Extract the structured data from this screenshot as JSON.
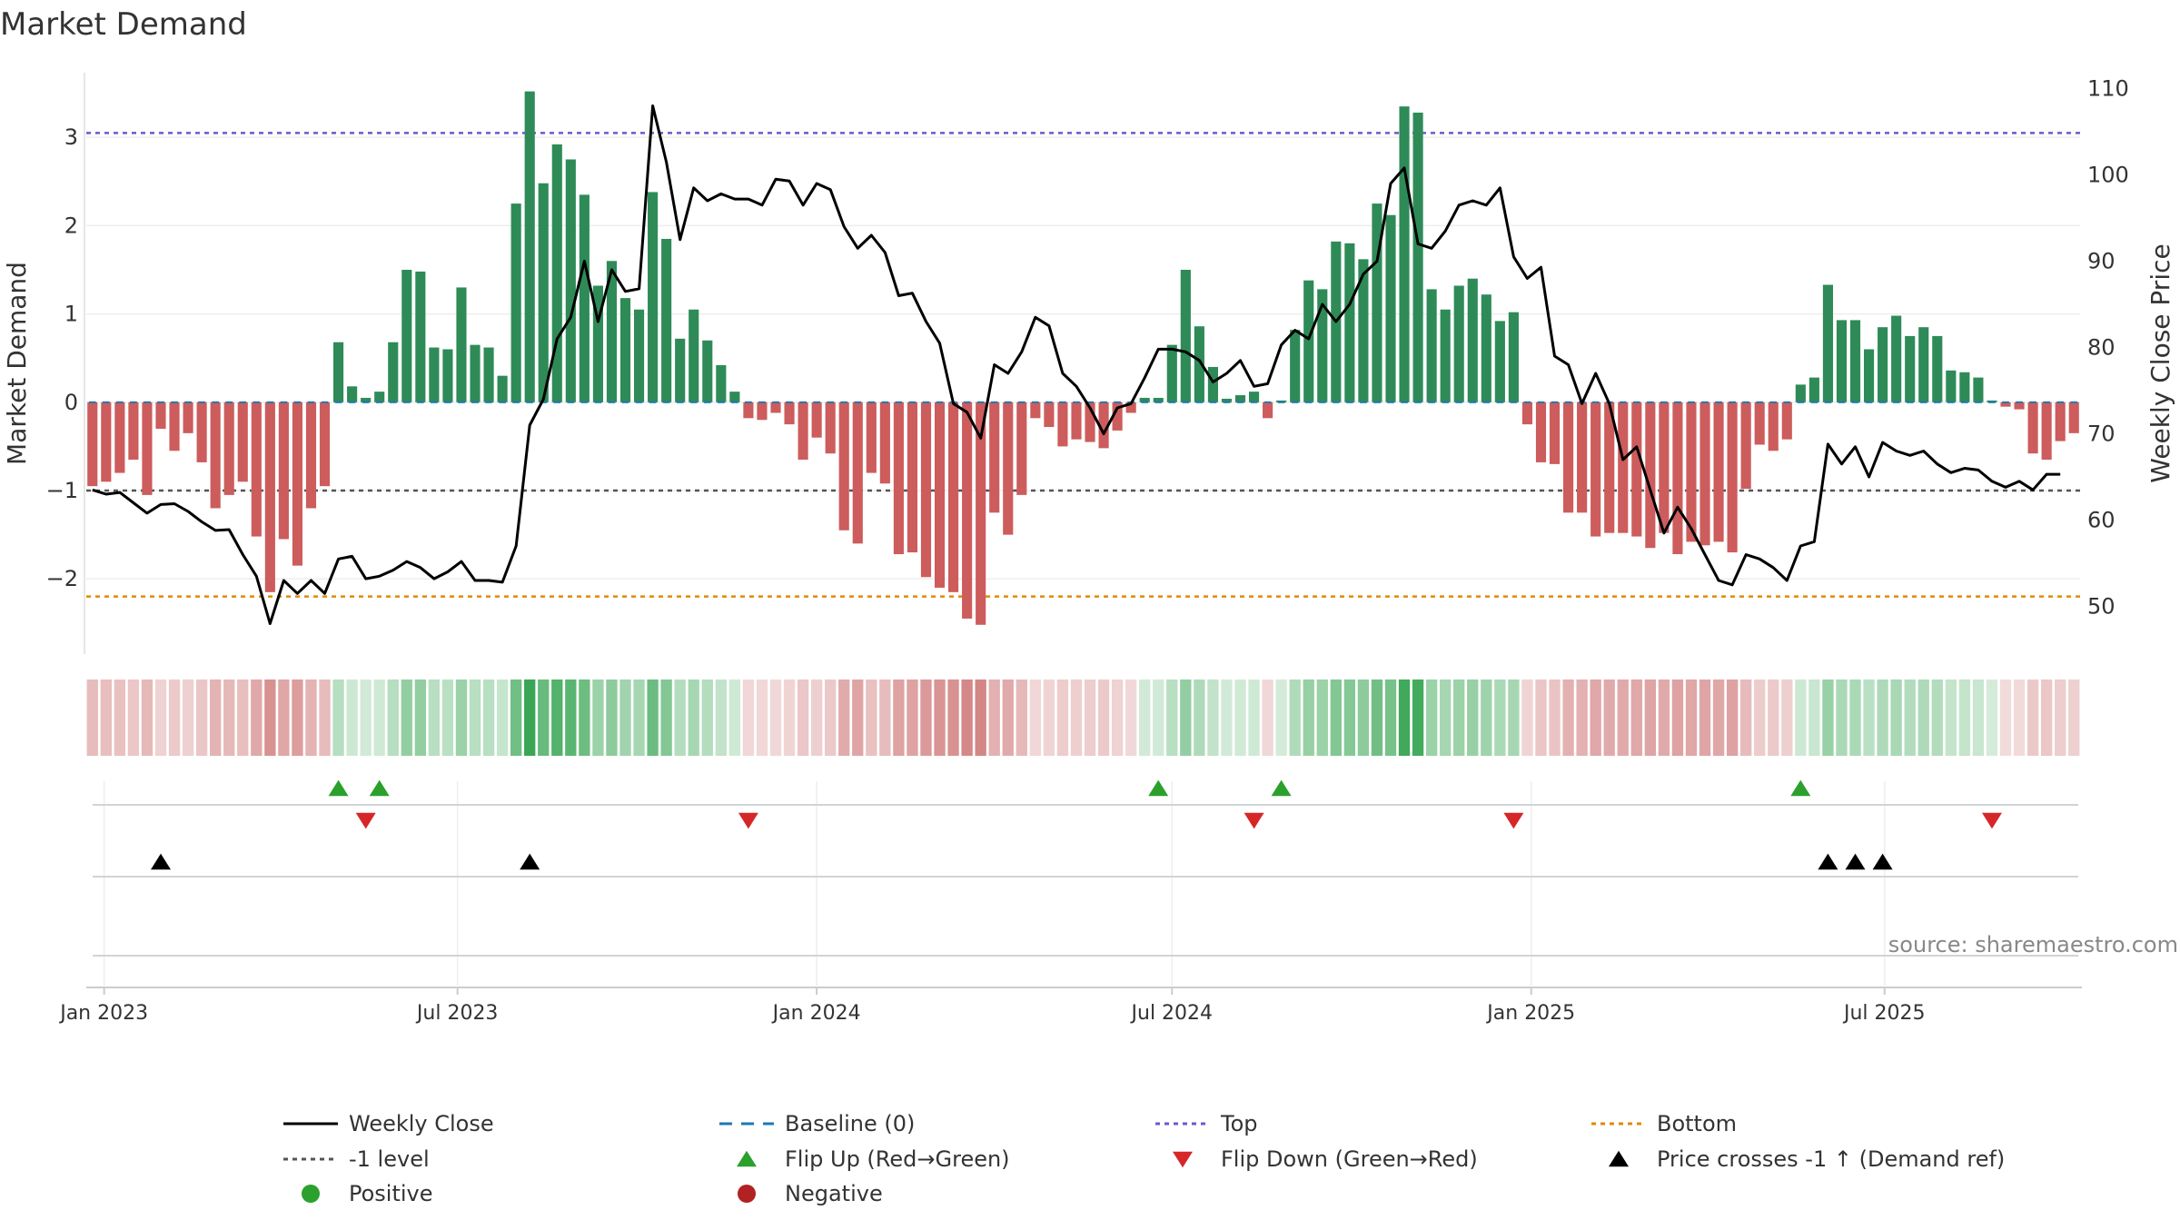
{
  "chart_data": {
    "type": "bar",
    "title": "Market Demand",
    "ylabel": "Market Demand",
    "y2label": "Weekly Close Price",
    "source": "source: sharemaestro.com",
    "ylim": [
      -2.8,
      3.65
    ],
    "y2lim": [
      45,
      111
    ],
    "yticks": [
      3,
      2,
      1,
      0,
      -1,
      -2
    ],
    "ytick_labels": [
      "3",
      "2",
      "1",
      "0",
      "−1",
      "−2"
    ],
    "y2ticks": [
      110,
      100,
      90,
      80,
      70,
      60,
      50
    ],
    "y2tick_labels": [
      "110",
      "100",
      "90",
      "80",
      "70",
      "60",
      "50"
    ],
    "x_start": "2022-12-26",
    "x_interval": "weekly",
    "xticks": [
      {
        "date": "2023-01-01",
        "label": "Jan 2023"
      },
      {
        "date": "2023-07-01",
        "label": "Jul 2023"
      },
      {
        "date": "2024-01-01",
        "label": "Jan 2024"
      },
      {
        "date": "2024-07-01",
        "label": "Jul 2024"
      },
      {
        "date": "2025-01-01",
        "label": "Jan 2025"
      },
      {
        "date": "2025-07-01",
        "label": "Jul 2025"
      }
    ],
    "reference_lines": {
      "top": 3.05,
      "bottom": -2.2,
      "minus_one": -1,
      "baseline": 0
    },
    "demand": [
      -0.95,
      -0.9,
      -0.8,
      -0.65,
      -1.05,
      -0.3,
      -0.55,
      -0.35,
      -0.68,
      -1.2,
      -1.05,
      -0.9,
      -1.52,
      -2.15,
      -1.55,
      -1.85,
      -1.2,
      -0.95,
      0.68,
      0.18,
      0.05,
      0.12,
      0.68,
      1.5,
      1.48,
      0.62,
      0.6,
      1.3,
      0.65,
      0.62,
      0.3,
      2.25,
      3.52,
      2.48,
      2.92,
      2.75,
      2.35,
      1.32,
      1.6,
      1.18,
      1.05,
      2.38,
      1.85,
      0.72,
      1.05,
      0.7,
      0.42,
      0.12,
      -0.18,
      -0.2,
      -0.12,
      -0.25,
      -0.65,
      -0.4,
      -0.58,
      -1.45,
      -1.6,
      -0.8,
      -0.92,
      -1.72,
      -1.7,
      -1.98,
      -2.1,
      -2.15,
      -2.45,
      -2.52,
      -1.25,
      -1.5,
      -1.05,
      -0.18,
      -0.28,
      -0.5,
      -0.42,
      -0.45,
      -0.52,
      -0.32,
      -0.12,
      0.05,
      0.05,
      0.65,
      1.5,
      0.86,
      0.4,
      0.04,
      0.08,
      0.12,
      -0.18,
      0.02,
      0.82,
      1.38,
      1.28,
      1.82,
      1.8,
      1.62,
      2.25,
      2.12,
      3.35,
      3.28,
      1.28,
      1.05,
      1.32,
      1.4,
      1.22,
      0.92,
      1.02,
      -0.25,
      -0.68,
      -0.7,
      -1.25,
      -1.25,
      -1.52,
      -1.48,
      -1.48,
      -1.52,
      -1.65,
      -1.48,
      -1.72,
      -1.58,
      -1.62,
      -1.58,
      -1.7,
      -0.98,
      -0.48,
      -0.55,
      -0.42,
      0.2,
      0.28,
      1.33,
      0.93,
      0.93,
      0.6,
      0.85,
      0.98,
      0.75,
      0.85,
      0.75,
      0.36,
      0.34,
      0.28,
      0.02,
      -0.05,
      -0.08,
      -0.58,
      -0.65,
      -0.44,
      -0.35
    ],
    "close": [
      63.5,
      63.0,
      63.2,
      62.0,
      60.8,
      61.8,
      61.9,
      61.0,
      59.8,
      58.8,
      58.9,
      56.0,
      53.5,
      48.0,
      53.0,
      51.5,
      53.0,
      51.5,
      55.5,
      55.8,
      53.2,
      53.5,
      54.2,
      55.2,
      54.5,
      53.2,
      54.0,
      55.2,
      53.0,
      53.0,
      52.8,
      57.0,
      71.0,
      74.0,
      81.0,
      83.5,
      90.0,
      83.0,
      89.0,
      86.5,
      86.8,
      108.0,
      101.5,
      92.5,
      98.5,
      97.0,
      97.8,
      97.2,
      97.2,
      96.5,
      99.5,
      99.3,
      96.5,
      99.0,
      98.3,
      94.0,
      91.5,
      93.0,
      91.0,
      86.0,
      86.3,
      83.0,
      80.5,
      73.5,
      72.5,
      69.5,
      78.0,
      77.0,
      79.5,
      83.5,
      82.5,
      77.0,
      75.5,
      73.0,
      70.0,
      73.0,
      73.5,
      76.5,
      79.8,
      79.8,
      79.5,
      78.5,
      76.0,
      77.0,
      78.5,
      75.5,
      75.8,
      80.3,
      82.0,
      81.0,
      85.0,
      83.0,
      85.0,
      88.5,
      90.0,
      99.0,
      100.8,
      92.0,
      91.5,
      93.5,
      96.5,
      97.0,
      96.5,
      98.5,
      90.5,
      88.0,
      89.3,
      79.0,
      78.0,
      73.5,
      77.0,
      73.5,
      67.0,
      68.5,
      63.5,
      58.5,
      61.5,
      59.0,
      56.0,
      53.0,
      52.5,
      56.0,
      55.5,
      54.5,
      53.0,
      57.0,
      57.5,
      68.8,
      66.5,
      68.5,
      65.0,
      69.0,
      68.0,
      67.5,
      68.0,
      66.5,
      65.5,
      66.0,
      65.8,
      64.5,
      63.8,
      64.5,
      63.5,
      65.3,
      65.3
    ],
    "strip_intensity_note": "color band shade follows demand value",
    "events": {
      "flip_up": [
        18,
        21,
        78,
        87,
        125
      ],
      "flip_down": [
        20,
        48,
        85,
        104,
        139
      ],
      "price_crosses": [
        5,
        32,
        127,
        129,
        131
      ]
    },
    "legend": [
      {
        "key": "weekly_close",
        "label": "Weekly Close",
        "marker": "line",
        "color": "#000000"
      },
      {
        "key": "baseline",
        "label": "Baseline (0)",
        "marker": "dashed",
        "color": "#1f77b4"
      },
      {
        "key": "top",
        "label": "Top",
        "marker": "dotted",
        "color": "#6a5acd"
      },
      {
        "key": "bottom",
        "label": "Bottom",
        "marker": "dotted",
        "color": "#e08a00"
      },
      {
        "key": "minus_one",
        "label": "-1 level",
        "marker": "dotted",
        "color": "#555555"
      },
      {
        "key": "flip_up",
        "label": "Flip Up (Red→Green)",
        "marker": "triangle-up",
        "color": "#2ca02c"
      },
      {
        "key": "flip_down",
        "label": "Flip Down (Green→Red)",
        "marker": "triangle-down",
        "color": "#d62728"
      },
      {
        "key": "price_cross",
        "label": "Price crosses -1 ↑ (Demand ref)",
        "marker": "triangle-up",
        "color": "#000000"
      },
      {
        "key": "positive",
        "label": "Positive",
        "marker": "circle",
        "color": "#2ca02c"
      },
      {
        "key": "negative",
        "label": "Negative",
        "marker": "circle",
        "color": "#b22222"
      }
    ],
    "colors": {
      "positive_bar": "#2e8b57",
      "negative_bar": "#cd5c5c",
      "close_line": "#000000",
      "strip_positive": "#3aa655",
      "strip_negative": "#c86464"
    }
  }
}
